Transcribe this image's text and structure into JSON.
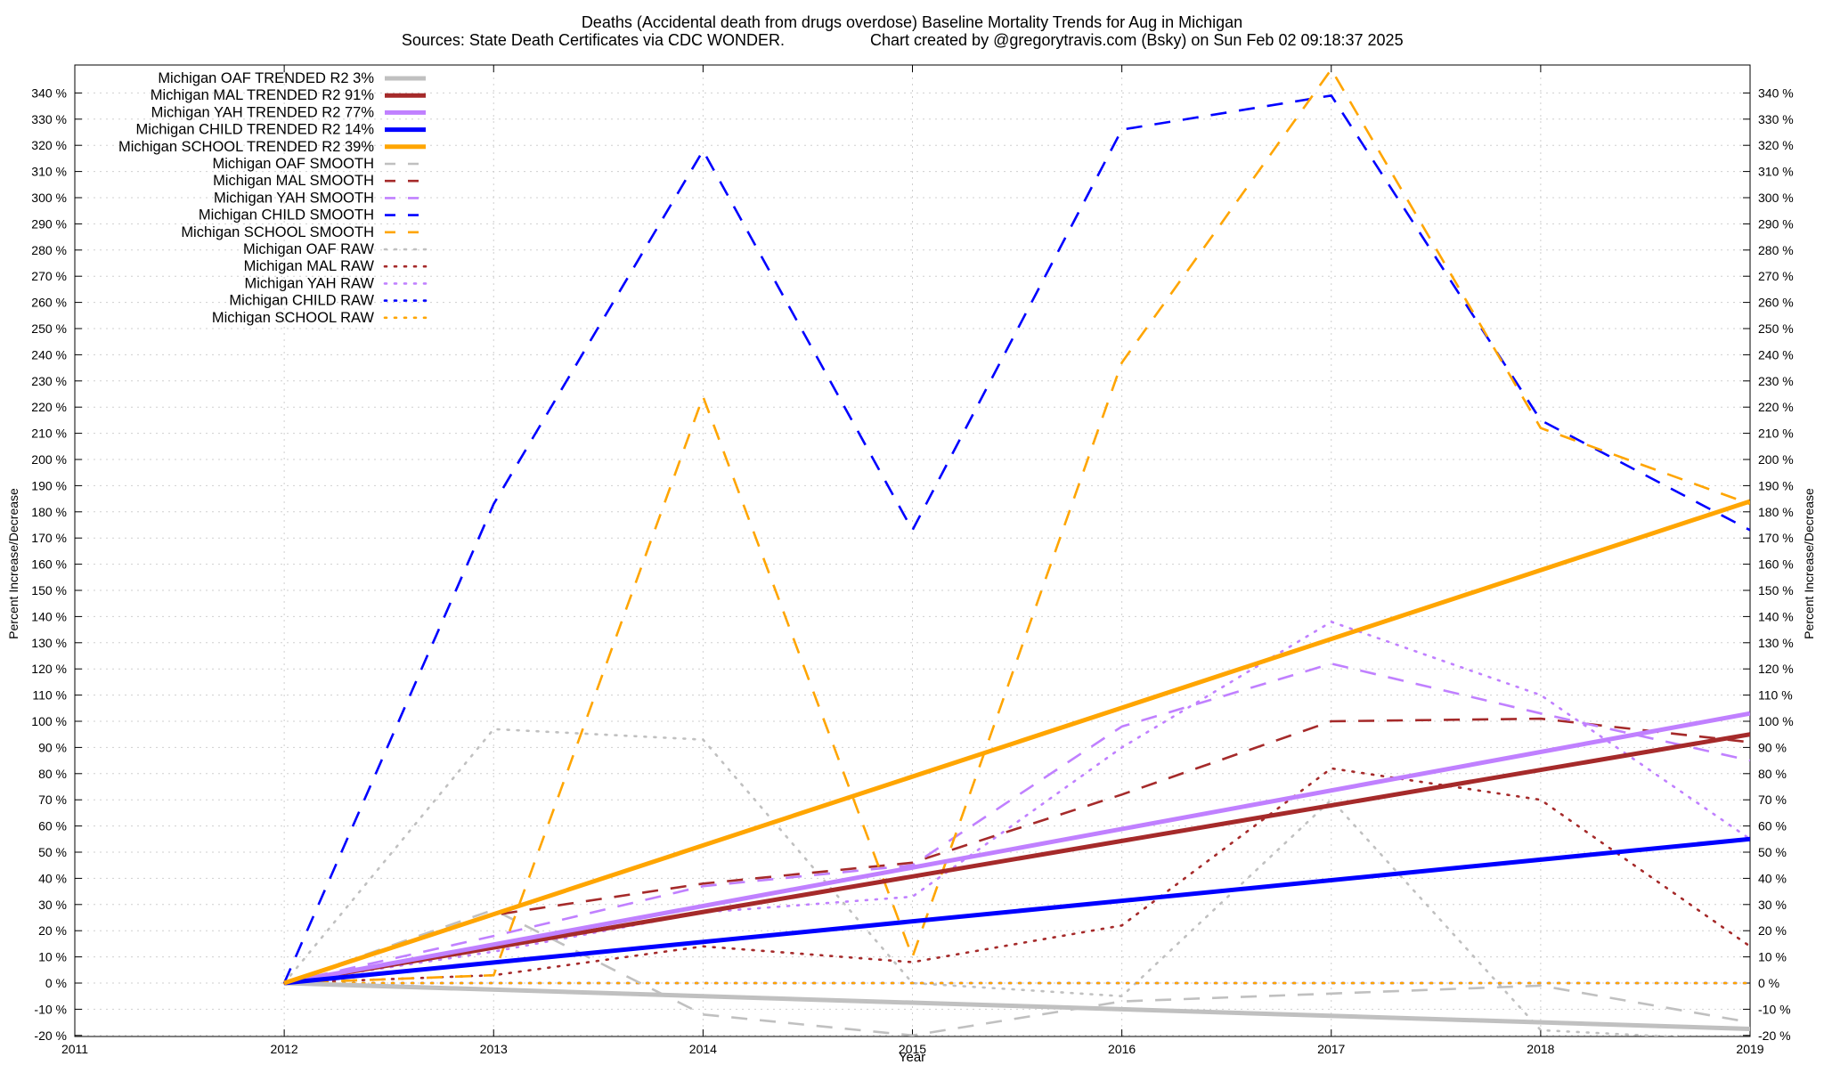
{
  "chart_data": {
    "type": "line",
    "title": "Deaths (Accidental death from drugs overdose)  Baseline Mortality Trends for Aug in Michigan",
    "subtitle_left": "Sources: State Death Certificates via CDC WONDER.",
    "subtitle_right": "Chart created by @gregorytravis.com (Bsky) on Sun Feb 02 09:18:37 2025",
    "xlabel": "Year",
    "ylabel_left": "Percent Increase/Decrease",
    "ylabel_right": "Percent Increase/Decrease",
    "xlim": [
      2011,
      2019
    ],
    "ylim": [
      -20,
      345
    ],
    "x_ticks": [
      2011,
      2012,
      2013,
      2014,
      2015,
      2016,
      2017,
      2018,
      2019
    ],
    "y_ticks": [
      -20,
      -10,
      0,
      10,
      20,
      30,
      40,
      50,
      60,
      70,
      80,
      90,
      100,
      110,
      120,
      130,
      140,
      150,
      160,
      170,
      180,
      190,
      200,
      210,
      220,
      230,
      240,
      250,
      260,
      270,
      280,
      290,
      300,
      310,
      320,
      330,
      340
    ],
    "y_tick_suffix": " %",
    "grid": true,
    "legend_position": "top-left",
    "colors": {
      "OAF": "#c0c0c0",
      "MAL": "#a52a2a",
      "YAH": "#c080ff",
      "CHILD": "#0000ff",
      "SCHOOL": "#ffa500"
    },
    "series": [
      {
        "name": "Michigan OAF TRENDED R2  3%",
        "group": "OAF",
        "style": "trend",
        "x": [
          2012,
          2019
        ],
        "values": [
          0,
          -17.5
        ]
      },
      {
        "name": "Michigan MAL TRENDED R2  91%",
        "group": "MAL",
        "style": "trend",
        "x": [
          2012,
          2019
        ],
        "values": [
          0,
          95
        ]
      },
      {
        "name": "Michigan YAH TRENDED R2  77%",
        "group": "YAH",
        "style": "trend",
        "x": [
          2012,
          2019
        ],
        "values": [
          0,
          103
        ]
      },
      {
        "name": "Michigan CHILD TRENDED R2  14%",
        "group": "CHILD",
        "style": "trend",
        "x": [
          2012,
          2019
        ],
        "values": [
          0,
          55
        ]
      },
      {
        "name": "Michigan SCHOOL TRENDED R2  39%",
        "group": "SCHOOL",
        "style": "trend",
        "x": [
          2012,
          2019
        ],
        "values": [
          0,
          184
        ]
      },
      {
        "name": "Michigan OAF SMOOTH",
        "group": "OAF",
        "style": "smooth",
        "x": [
          2012,
          2013,
          2014,
          2015,
          2016,
          2017,
          2018,
          2019
        ],
        "values": [
          0,
          28,
          -12,
          -20,
          -7,
          -4,
          -1,
          -15
        ]
      },
      {
        "name": "Michigan MAL SMOOTH",
        "group": "MAL",
        "style": "smooth",
        "x": [
          2012,
          2013,
          2014,
          2015,
          2016,
          2017,
          2018,
          2019
        ],
        "values": [
          0,
          26,
          38,
          46,
          72,
          100,
          101,
          92
        ]
      },
      {
        "name": "Michigan YAH SMOOTH",
        "group": "YAH",
        "style": "smooth",
        "x": [
          2012,
          2013,
          2014,
          2015,
          2016,
          2017,
          2018,
          2019
        ],
        "values": [
          0,
          18,
          37,
          45,
          98,
          122,
          103,
          85
        ]
      },
      {
        "name": "Michigan CHILD SMOOTH",
        "group": "CHILD",
        "style": "smooth",
        "x": [
          2012,
          2013,
          2014,
          2015,
          2016,
          2017,
          2018,
          2019
        ],
        "values": [
          0,
          183,
          318,
          173,
          326,
          339,
          215,
          173
        ]
      },
      {
        "name": "Michigan SCHOOL SMOOTH",
        "group": "SCHOOL",
        "style": "smooth",
        "x": [
          2012,
          2013,
          2014,
          2015,
          2016,
          2017,
          2018,
          2019
        ],
        "values": [
          0,
          3,
          224,
          10,
          237,
          349,
          212,
          183
        ]
      },
      {
        "name": "Michigan OAF RAW",
        "group": "OAF",
        "style": "raw",
        "x": [
          2012,
          2013,
          2014,
          2015,
          2016,
          2017,
          2018,
          2019
        ],
        "values": [
          0,
          97,
          93,
          0,
          -5,
          70,
          -18,
          -22
        ]
      },
      {
        "name": "Michigan MAL RAW",
        "group": "MAL",
        "style": "raw",
        "x": [
          2012,
          2013,
          2014,
          2015,
          2016,
          2017,
          2018,
          2019
        ],
        "values": [
          0,
          3,
          14,
          8,
          22,
          82,
          70,
          14
        ]
      },
      {
        "name": "Michigan YAH RAW",
        "group": "YAH",
        "style": "raw",
        "x": [
          2012,
          2013,
          2014,
          2015,
          2016,
          2017,
          2018,
          2019
        ],
        "values": [
          0,
          12,
          27,
          33,
          90,
          138,
          110,
          55
        ]
      },
      {
        "name": "Michigan CHILD RAW",
        "group": "CHILD",
        "style": "raw",
        "x": [
          2012,
          2013,
          2014,
          2015,
          2016,
          2017,
          2018,
          2019
        ],
        "values": [
          0,
          0,
          0,
          0,
          0,
          0,
          0,
          0
        ]
      },
      {
        "name": "Michigan SCHOOL RAW",
        "group": "SCHOOL",
        "style": "raw",
        "x": [
          2012,
          2013,
          2014,
          2015,
          2016,
          2017,
          2018,
          2019
        ],
        "values": [
          0,
          0,
          0,
          0,
          0,
          0,
          0,
          0
        ]
      }
    ]
  }
}
